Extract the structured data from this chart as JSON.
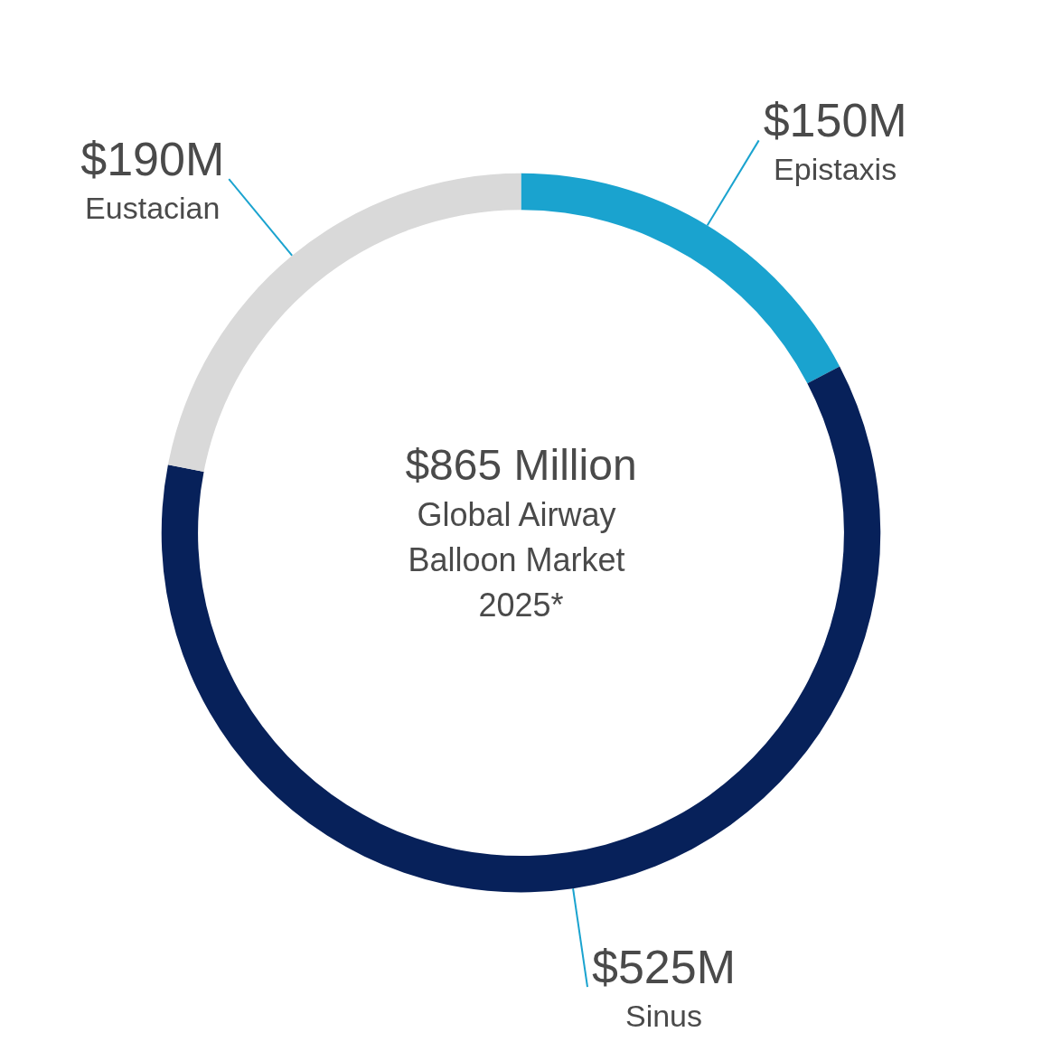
{
  "chart_data": {
    "type": "donut",
    "title": "$865 Million",
    "subtitle": "Global Airway Balloon Market 2025*",
    "categories": [
      "Epistaxis",
      "Sinus",
      "Eustacian"
    ],
    "values": [
      150,
      525,
      190
    ],
    "value_labels": [
      "$150M",
      "$525M",
      "$190M"
    ],
    "colors": [
      "#1aa3cf",
      "#07215a",
      "#d9d9d9"
    ],
    "legend": false
  }
}
